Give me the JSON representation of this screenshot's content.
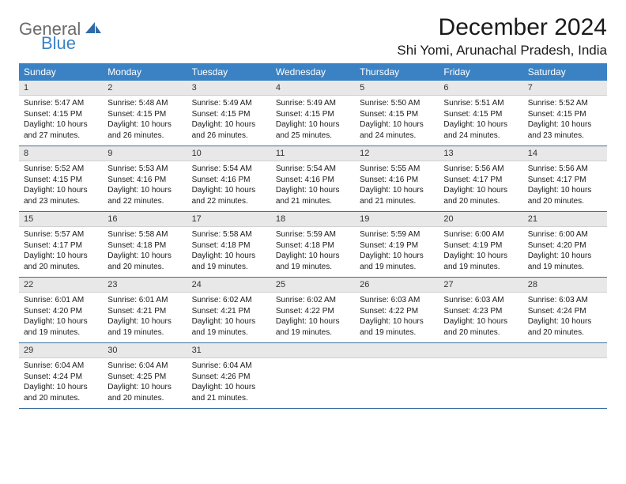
{
  "logo": {
    "text1": "General",
    "text2": "Blue"
  },
  "title": "December 2024",
  "subtitle": "Shi Yomi, Arunachal Pradesh, India",
  "colors": {
    "header_bg": "#3b82c4",
    "header_text": "#ffffff",
    "daynum_bg": "#e8e8e8",
    "week_border": "#3b6fa0",
    "logo_gray": "#6b6b6b",
    "logo_blue": "#3b82c4"
  },
  "weekdays": [
    "Sunday",
    "Monday",
    "Tuesday",
    "Wednesday",
    "Thursday",
    "Friday",
    "Saturday"
  ],
  "weeks": [
    [
      {
        "n": "1",
        "sr": "Sunrise: 5:47 AM",
        "ss": "Sunset: 4:15 PM",
        "d1": "Daylight: 10 hours",
        "d2": "and 27 minutes."
      },
      {
        "n": "2",
        "sr": "Sunrise: 5:48 AM",
        "ss": "Sunset: 4:15 PM",
        "d1": "Daylight: 10 hours",
        "d2": "and 26 minutes."
      },
      {
        "n": "3",
        "sr": "Sunrise: 5:49 AM",
        "ss": "Sunset: 4:15 PM",
        "d1": "Daylight: 10 hours",
        "d2": "and 26 minutes."
      },
      {
        "n": "4",
        "sr": "Sunrise: 5:49 AM",
        "ss": "Sunset: 4:15 PM",
        "d1": "Daylight: 10 hours",
        "d2": "and 25 minutes."
      },
      {
        "n": "5",
        "sr": "Sunrise: 5:50 AM",
        "ss": "Sunset: 4:15 PM",
        "d1": "Daylight: 10 hours",
        "d2": "and 24 minutes."
      },
      {
        "n": "6",
        "sr": "Sunrise: 5:51 AM",
        "ss": "Sunset: 4:15 PM",
        "d1": "Daylight: 10 hours",
        "d2": "and 24 minutes."
      },
      {
        "n": "7",
        "sr": "Sunrise: 5:52 AM",
        "ss": "Sunset: 4:15 PM",
        "d1": "Daylight: 10 hours",
        "d2": "and 23 minutes."
      }
    ],
    [
      {
        "n": "8",
        "sr": "Sunrise: 5:52 AM",
        "ss": "Sunset: 4:15 PM",
        "d1": "Daylight: 10 hours",
        "d2": "and 23 minutes."
      },
      {
        "n": "9",
        "sr": "Sunrise: 5:53 AM",
        "ss": "Sunset: 4:16 PM",
        "d1": "Daylight: 10 hours",
        "d2": "and 22 minutes."
      },
      {
        "n": "10",
        "sr": "Sunrise: 5:54 AM",
        "ss": "Sunset: 4:16 PM",
        "d1": "Daylight: 10 hours",
        "d2": "and 22 minutes."
      },
      {
        "n": "11",
        "sr": "Sunrise: 5:54 AM",
        "ss": "Sunset: 4:16 PM",
        "d1": "Daylight: 10 hours",
        "d2": "and 21 minutes."
      },
      {
        "n": "12",
        "sr": "Sunrise: 5:55 AM",
        "ss": "Sunset: 4:16 PM",
        "d1": "Daylight: 10 hours",
        "d2": "and 21 minutes."
      },
      {
        "n": "13",
        "sr": "Sunrise: 5:56 AM",
        "ss": "Sunset: 4:17 PM",
        "d1": "Daylight: 10 hours",
        "d2": "and 20 minutes."
      },
      {
        "n": "14",
        "sr": "Sunrise: 5:56 AM",
        "ss": "Sunset: 4:17 PM",
        "d1": "Daylight: 10 hours",
        "d2": "and 20 minutes."
      }
    ],
    [
      {
        "n": "15",
        "sr": "Sunrise: 5:57 AM",
        "ss": "Sunset: 4:17 PM",
        "d1": "Daylight: 10 hours",
        "d2": "and 20 minutes."
      },
      {
        "n": "16",
        "sr": "Sunrise: 5:58 AM",
        "ss": "Sunset: 4:18 PM",
        "d1": "Daylight: 10 hours",
        "d2": "and 20 minutes."
      },
      {
        "n": "17",
        "sr": "Sunrise: 5:58 AM",
        "ss": "Sunset: 4:18 PM",
        "d1": "Daylight: 10 hours",
        "d2": "and 19 minutes."
      },
      {
        "n": "18",
        "sr": "Sunrise: 5:59 AM",
        "ss": "Sunset: 4:18 PM",
        "d1": "Daylight: 10 hours",
        "d2": "and 19 minutes."
      },
      {
        "n": "19",
        "sr": "Sunrise: 5:59 AM",
        "ss": "Sunset: 4:19 PM",
        "d1": "Daylight: 10 hours",
        "d2": "and 19 minutes."
      },
      {
        "n": "20",
        "sr": "Sunrise: 6:00 AM",
        "ss": "Sunset: 4:19 PM",
        "d1": "Daylight: 10 hours",
        "d2": "and 19 minutes."
      },
      {
        "n": "21",
        "sr": "Sunrise: 6:00 AM",
        "ss": "Sunset: 4:20 PM",
        "d1": "Daylight: 10 hours",
        "d2": "and 19 minutes."
      }
    ],
    [
      {
        "n": "22",
        "sr": "Sunrise: 6:01 AM",
        "ss": "Sunset: 4:20 PM",
        "d1": "Daylight: 10 hours",
        "d2": "and 19 minutes."
      },
      {
        "n": "23",
        "sr": "Sunrise: 6:01 AM",
        "ss": "Sunset: 4:21 PM",
        "d1": "Daylight: 10 hours",
        "d2": "and 19 minutes."
      },
      {
        "n": "24",
        "sr": "Sunrise: 6:02 AM",
        "ss": "Sunset: 4:21 PM",
        "d1": "Daylight: 10 hours",
        "d2": "and 19 minutes."
      },
      {
        "n": "25",
        "sr": "Sunrise: 6:02 AM",
        "ss": "Sunset: 4:22 PM",
        "d1": "Daylight: 10 hours",
        "d2": "and 19 minutes."
      },
      {
        "n": "26",
        "sr": "Sunrise: 6:03 AM",
        "ss": "Sunset: 4:22 PM",
        "d1": "Daylight: 10 hours",
        "d2": "and 19 minutes."
      },
      {
        "n": "27",
        "sr": "Sunrise: 6:03 AM",
        "ss": "Sunset: 4:23 PM",
        "d1": "Daylight: 10 hours",
        "d2": "and 20 minutes."
      },
      {
        "n": "28",
        "sr": "Sunrise: 6:03 AM",
        "ss": "Sunset: 4:24 PM",
        "d1": "Daylight: 10 hours",
        "d2": "and 20 minutes."
      }
    ],
    [
      {
        "n": "29",
        "sr": "Sunrise: 6:04 AM",
        "ss": "Sunset: 4:24 PM",
        "d1": "Daylight: 10 hours",
        "d2": "and 20 minutes."
      },
      {
        "n": "30",
        "sr": "Sunrise: 6:04 AM",
        "ss": "Sunset: 4:25 PM",
        "d1": "Daylight: 10 hours",
        "d2": "and 20 minutes."
      },
      {
        "n": "31",
        "sr": "Sunrise: 6:04 AM",
        "ss": "Sunset: 4:26 PM",
        "d1": "Daylight: 10 hours",
        "d2": "and 21 minutes."
      },
      {
        "empty": true
      },
      {
        "empty": true
      },
      {
        "empty": true
      },
      {
        "empty": true
      }
    ]
  ]
}
